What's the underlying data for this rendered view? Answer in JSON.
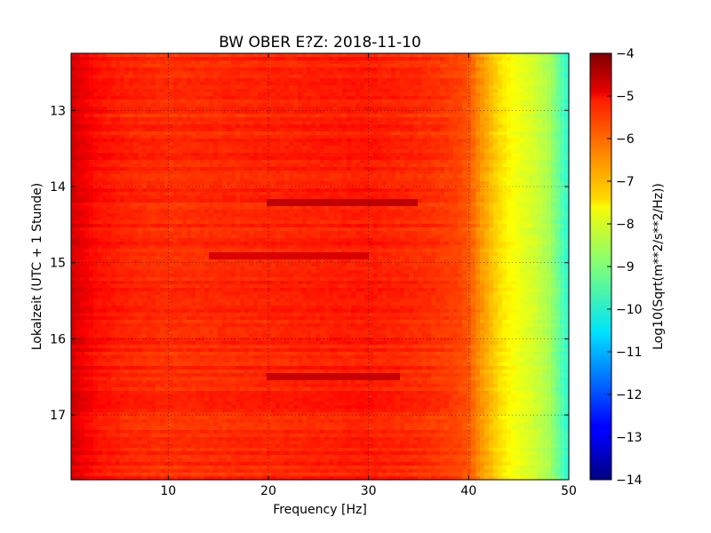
{
  "chart_data": {
    "type": "heatmap",
    "title": "BW OBER E?Z: 2018-11-10",
    "xlabel": "Frequency [Hz]",
    "ylabel": "Lokalzeit (UTC + 1 Stunde)",
    "colorbar_label": "Log10(Sqrt(m**2/s**2/Hz))",
    "xlim": [
      0.3,
      50
    ],
    "ylim": [
      12.25,
      17.85
    ],
    "y_inverted": true,
    "clim": [
      -14,
      -4
    ],
    "colormap": "jet",
    "grid": true,
    "x_ticks": [
      10,
      20,
      30,
      40,
      50
    ],
    "y_ticks": [
      13,
      14,
      15,
      16,
      17
    ],
    "colorbar_ticks": [
      -4,
      -5,
      -6,
      -7,
      -8,
      -9,
      -10,
      -11,
      -12,
      -13,
      -14
    ],
    "band_profile": {
      "frequency_hz": [
        0.3,
        1,
        3,
        6,
        10,
        20,
        30,
        36,
        39,
        40,
        41,
        42,
        43,
        44,
        45,
        46,
        47,
        48,
        49,
        50
      ],
      "log10_amplitude": [
        -4.8,
        -5.0,
        -5.4,
        -5.6,
        -5.7,
        -5.6,
        -5.5,
        -5.7,
        -5.9,
        -6.1,
        -6.6,
        -7.0,
        -7.4,
        -7.7,
        -7.9,
        -8.1,
        -8.3,
        -8.6,
        -9.2,
        -9.9
      ]
    },
    "anomalies": [
      {
        "time": 14.2,
        "fmin": 20,
        "fmax": 35,
        "log10_amplitude": -4.6
      },
      {
        "time": 14.9,
        "fmin": 14,
        "fmax": 30,
        "log10_amplitude": -4.9
      },
      {
        "time": 16.5,
        "fmin": 20,
        "fmax": 33,
        "log10_amplitude": -4.7
      }
    ]
  }
}
